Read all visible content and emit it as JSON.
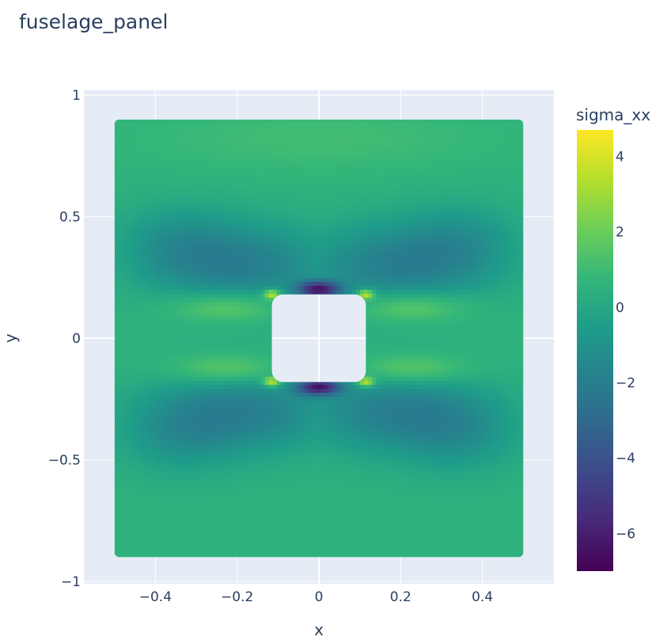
{
  "chart_data": {
    "type": "heatmap",
    "title": "fuselage_panel",
    "xlabel": "x",
    "ylabel": "y",
    "xlim": [
      -0.575,
      0.575
    ],
    "ylim": [
      -1.01,
      1.02
    ],
    "x_ticks": [
      {
        "value": -0.4,
        "label": "−0.4"
      },
      {
        "value": -0.2,
        "label": "−0.2"
      },
      {
        "value": 0,
        "label": "0"
      },
      {
        "value": 0.2,
        "label": "0.2"
      },
      {
        "value": 0.4,
        "label": "0.4"
      }
    ],
    "y_ticks": [
      {
        "value": 1,
        "label": "1"
      },
      {
        "value": 0.5,
        "label": "0.5"
      },
      {
        "value": 0,
        "label": "0"
      },
      {
        "value": -0.5,
        "label": "−0.5"
      },
      {
        "value": -1,
        "label": "−1"
      }
    ],
    "panel": {
      "x": [
        -0.5,
        0.5
      ],
      "y": [
        -0.9,
        0.9
      ]
    },
    "hole": {
      "x": [
        -0.115,
        0.115
      ],
      "y": [
        -0.18,
        0.18
      ]
    },
    "colorbar": {
      "title": "sigma_xx",
      "range": [
        -7.0,
        4.7
      ],
      "ticks": [
        {
          "value": 4,
          "label": "4"
        },
        {
          "value": 2,
          "label": "2"
        },
        {
          "value": 0,
          "label": "0"
        },
        {
          "value": -2,
          "label": "−2"
        },
        {
          "value": -4,
          "label": "−4"
        },
        {
          "value": -6,
          "label": "−6"
        }
      ],
      "colorscale": "viridis"
    },
    "grid": true
  },
  "colors": {
    "plot_bg": "#e5ecf6",
    "grid": "#ffffff",
    "text": "#2a3f5f"
  }
}
